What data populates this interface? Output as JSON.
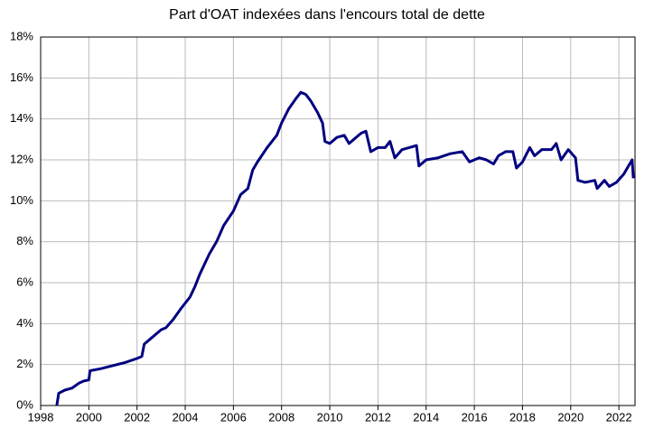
{
  "chart_data": {
    "type": "line",
    "title": "Part d'OAT indexées dans l'encours total de dette",
    "x": [
      1998.67,
      1998.75,
      1999.0,
      1999.3,
      1999.6,
      1999.8,
      2000.0,
      2000.05,
      2000.5,
      2001.0,
      2001.5,
      2002.0,
      2002.2,
      2002.3,
      2002.6,
      2003.0,
      2003.2,
      2003.5,
      2003.8,
      2004.2,
      2004.4,
      2004.6,
      2005.0,
      2005.3,
      2005.6,
      2006.0,
      2006.3,
      2006.6,
      2006.8,
      2007.0,
      2007.4,
      2007.8,
      2008.0,
      2008.3,
      2008.6,
      2008.8,
      2009.0,
      2009.2,
      2009.5,
      2009.7,
      2009.8,
      2010.0,
      2010.3,
      2010.6,
      2010.8,
      2011.0,
      2011.3,
      2011.5,
      2011.7,
      2012.0,
      2012.3,
      2012.5,
      2012.7,
      2013.0,
      2013.3,
      2013.6,
      2013.7,
      2014.0,
      2014.5,
      2015.0,
      2015.5,
      2015.8,
      2016.2,
      2016.5,
      2016.8,
      2017.0,
      2017.3,
      2017.6,
      2017.75,
      2018.0,
      2018.3,
      2018.5,
      2018.8,
      2019.2,
      2019.4,
      2019.6,
      2019.9,
      2020.2,
      2020.3,
      2020.6,
      2021.0,
      2021.1,
      2021.4,
      2021.6,
      2021.9,
      2022.2,
      2022.4,
      2022.55,
      2022.6
    ],
    "values": [
      0,
      0.6,
      0.75,
      0.85,
      1.1,
      1.2,
      1.25,
      1.7,
      1.8,
      1.95,
      2.1,
      2.3,
      2.4,
      3.0,
      3.3,
      3.7,
      3.8,
      4.2,
      4.7,
      5.3,
      5.8,
      6.4,
      7.4,
      8.0,
      8.8,
      9.5,
      10.3,
      10.6,
      11.5,
      11.9,
      12.6,
      13.2,
      13.8,
      14.5,
      15.0,
      15.3,
      15.2,
      14.9,
      14.3,
      13.8,
      12.9,
      12.8,
      13.1,
      13.2,
      12.8,
      13.0,
      13.3,
      13.4,
      12.4,
      12.6,
      12.6,
      12.9,
      12.1,
      12.5,
      12.6,
      12.7,
      11.7,
      12.0,
      12.1,
      12.3,
      12.4,
      11.9,
      12.1,
      12.0,
      11.8,
      12.2,
      12.4,
      12.4,
      11.6,
      11.9,
      12.6,
      12.2,
      12.5,
      12.5,
      12.8,
      12.0,
      12.5,
      12.1,
      11.0,
      10.9,
      11.0,
      10.6,
      11.0,
      10.7,
      10.9,
      11.3,
      11.7,
      12.0,
      11.1
    ],
    "color": "#000080",
    "xlim": [
      1998,
      2022.67
    ],
    "xticks": [
      1998,
      2000,
      2002,
      2004,
      2006,
      2008,
      2010,
      2012,
      2014,
      2016,
      2018,
      2020,
      2022
    ],
    "ylim": [
      0,
      18
    ],
    "yticks": [
      {
        "value": 0,
        "label": "0%"
      },
      {
        "value": 2,
        "label": "2%"
      },
      {
        "value": 4,
        "label": "4%"
      },
      {
        "value": 6,
        "label": "6%"
      },
      {
        "value": 8,
        "label": "8%"
      },
      {
        "value": 10,
        "label": "10%"
      },
      {
        "value": 12,
        "label": "12%"
      },
      {
        "value": 14,
        "label": "14%"
      },
      {
        "value": 16,
        "label": "16%"
      },
      {
        "value": 18,
        "label": "18%"
      }
    ],
    "grid": true
  }
}
